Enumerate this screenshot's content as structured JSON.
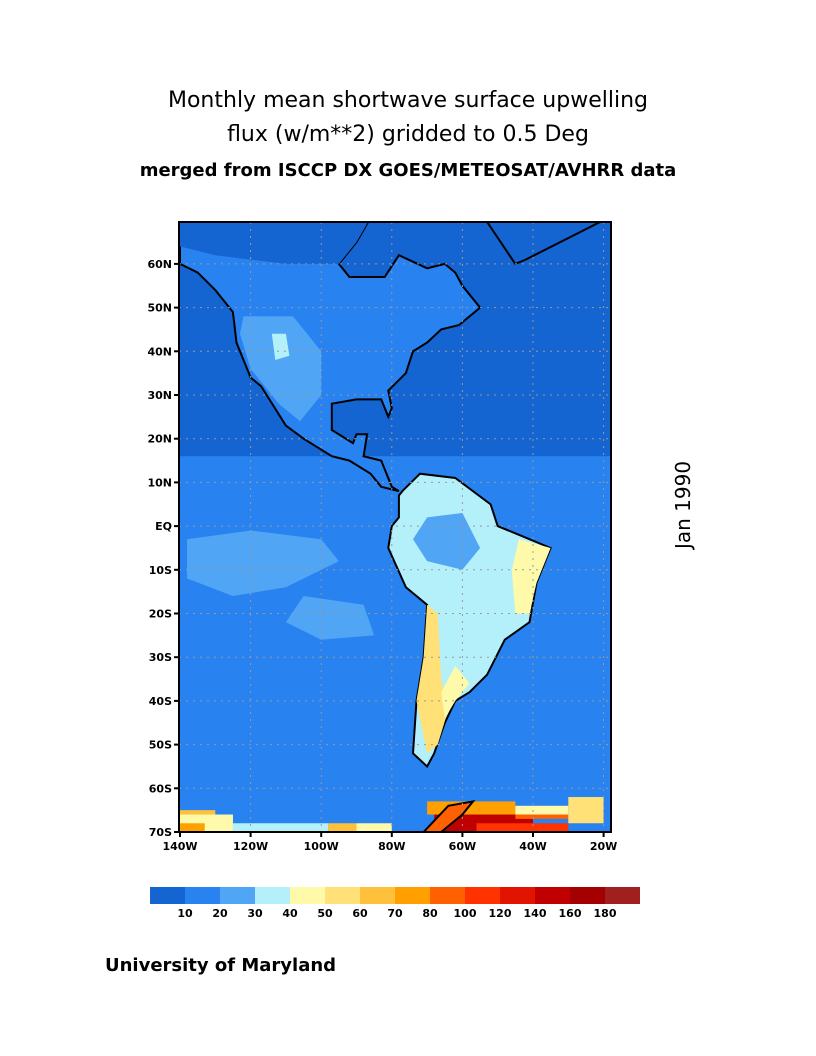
{
  "title": {
    "line1": "Monthly mean shortwave surface upwelling",
    "line2": "flux (w/m**2) gridded to 0.5 Deg",
    "line3": "merged from ISCCP DX GOES/METEOSAT/AVHRR data"
  },
  "date_label": "Jan 1990",
  "credit": "University of Maryland",
  "map": {
    "lon_ticks": [
      "140W",
      "120W",
      "100W",
      "80W",
      "60W",
      "40W",
      "20W"
    ],
    "lat_ticks": [
      "60N",
      "50N",
      "40N",
      "30N",
      "20N",
      "10N",
      "EQ",
      "10S",
      "20S",
      "30S",
      "40S",
      "50S",
      "60S",
      "70S"
    ],
    "gridlines": true
  },
  "colorbar": {
    "colors": [
      "#1464d2",
      "#2882f0",
      "#50a5f5",
      "#b4f0fa",
      "#fffaaa",
      "#ffe178",
      "#ffc03c",
      "#ffa000",
      "#ff6000",
      "#ff3200",
      "#e11400",
      "#c00000",
      "#a50000",
      "#a02020"
    ],
    "labels": [
      "10",
      "20",
      "30",
      "40",
      "50",
      "60",
      "70",
      "80",
      "100",
      "120",
      "140",
      "160",
      "180"
    ]
  }
}
